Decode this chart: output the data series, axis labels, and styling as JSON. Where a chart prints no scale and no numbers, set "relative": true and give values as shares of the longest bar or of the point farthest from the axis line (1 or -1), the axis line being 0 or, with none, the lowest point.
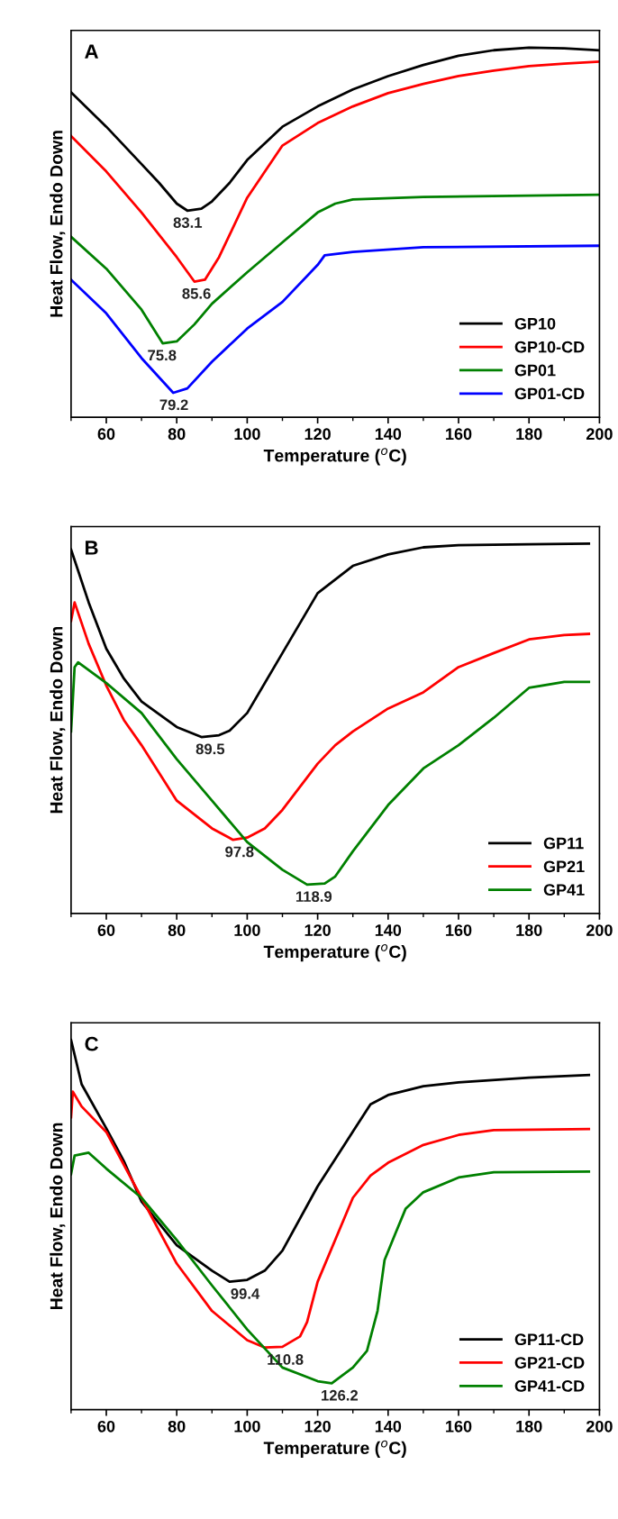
{
  "chart_data": [
    {
      "type": "line",
      "title": "A",
      "xlabel": "Temperature ($^{o}$C)",
      "ylabel": "Heat Flow, Endo Down",
      "relative": true,
      "xlim": [
        50,
        200
      ],
      "xticks": [
        {
          "value": 50,
          "label": null
        },
        60,
        {
          "value": 70,
          "label": null
        },
        80,
        {
          "value": 90,
          "label": null
        },
        100,
        {
          "value": 110,
          "label": null
        },
        120,
        {
          "value": 130,
          "label": null
        },
        140,
        {
          "value": 150,
          "label": null
        },
        160,
        {
          "value": 170,
          "label": null
        },
        180,
        {
          "value": 190,
          "label": null
        },
        200
      ],
      "tick_labels": "x",
      "grid": false,
      "legend": "bottom right",
      "marker": "none",
      "line_style": "solid",
      "series": [
        {
          "name": "GP10",
          "color": "#000000",
          "x": [
            50,
            60,
            70,
            75,
            80,
            83,
            87,
            90,
            95,
            100,
            110,
            120,
            130,
            140,
            150,
            160,
            170,
            180,
            190,
            200
          ],
          "values": [
            0.879,
            0.786,
            0.685,
            0.634,
            0.578,
            0.559,
            0.564,
            0.584,
            0.634,
            0.696,
            0.786,
            0.841,
            0.887,
            0.923,
            0.953,
            0.978,
            0.993,
            1,
            0.998,
            0.993
          ]
        },
        {
          "name": "GP10-CD",
          "color": "#ff0000",
          "x": [
            50,
            60,
            70,
            80,
            85,
            88,
            92,
            100,
            110,
            120,
            130,
            140,
            150,
            160,
            170,
            180,
            190,
            200
          ],
          "values": [
            0.761,
            0.665,
            0.554,
            0.433,
            0.367,
            0.372,
            0.433,
            0.594,
            0.735,
            0.796,
            0.841,
            0.877,
            0.902,
            0.923,
            0.938,
            0.95,
            0.957,
            0.962
          ]
        },
        {
          "name": "GP01",
          "color": "#008000",
          "x": [
            50,
            60,
            70,
            76,
            80,
            85,
            90,
            100,
            110,
            120,
            125,
            130,
            150,
            200
          ],
          "values": [
            0.488,
            0.402,
            0.291,
            0.2,
            0.205,
            0.251,
            0.307,
            0.392,
            0.473,
            0.554,
            0.578,
            0.589,
            0.596,
            0.602
          ]
        },
        {
          "name": "GP01-CD",
          "color": "#0000ff",
          "x": [
            50,
            60,
            70,
            79,
            83,
            90,
            100,
            110,
            120,
            122,
            130,
            150,
            200
          ],
          "values": [
            0.372,
            0.281,
            0.16,
            0.066,
            0.078,
            0.15,
            0.24,
            0.312,
            0.412,
            0.438,
            0.447,
            0.46,
            0.464
          ]
        }
      ],
      "annotations": [
        {
          "text": "83.1",
          "x": 83.1,
          "y": 0.559
        },
        {
          "text": "85.6",
          "x": 85.6,
          "y": 0.367
        },
        {
          "text": "75.8",
          "x": 75.8,
          "y": 0.2
        },
        {
          "text": "79.2",
          "x": 79.2,
          "y": 0.066
        }
      ]
    },
    {
      "type": "line",
      "title": "B",
      "xlabel": "Temperature ($^{o}$C)",
      "ylabel": "Heat Flow, Endo Down",
      "relative": true,
      "xlim": [
        50,
        200
      ],
      "xticks": [
        {
          "value": 50,
          "label": null
        },
        60,
        {
          "value": 70,
          "label": null
        },
        80,
        {
          "value": 90,
          "label": null
        },
        100,
        {
          "value": 110,
          "label": null
        },
        120,
        {
          "value": 130,
          "label": null
        },
        140,
        {
          "value": 150,
          "label": null
        },
        160,
        {
          "value": 170,
          "label": null
        },
        180,
        {
          "value": 190,
          "label": null
        },
        200
      ],
      "tick_labels": "x",
      "grid": false,
      "legend": "bottom right",
      "marker": "none",
      "line_style": "solid",
      "series": [
        {
          "name": "GP11",
          "color": "#000000",
          "x": [
            50,
            55,
            60,
            65,
            70,
            80,
            87,
            92,
            95,
            100,
            110,
            120,
            130,
            140,
            150,
            160,
            180,
            197
          ],
          "values": [
            0.984,
            0.841,
            0.716,
            0.635,
            0.573,
            0.504,
            0.477,
            0.482,
            0.494,
            0.542,
            0.704,
            0.866,
            0.94,
            0.971,
            0.99,
            0.996,
            0.998,
            1
          ]
        },
        {
          "name": "GP21",
          "color": "#ff0000",
          "x": [
            50,
            51,
            55,
            60,
            65,
            70,
            80,
            90,
            96,
            100,
            105,
            110,
            120,
            125,
            130,
            140,
            150,
            160,
            170,
            180,
            190,
            197
          ],
          "values": [
            0.791,
            0.841,
            0.729,
            0.616,
            0.523,
            0.455,
            0.305,
            0.23,
            0.199,
            0.205,
            0.23,
            0.28,
            0.405,
            0.455,
            0.492,
            0.554,
            0.598,
            0.666,
            0.704,
            0.741,
            0.753,
            0.756
          ]
        },
        {
          "name": "GP41",
          "color": "#008000",
          "x": [
            50,
            51,
            52,
            60,
            70,
            80,
            90,
            100,
            110,
            117,
            122,
            125,
            130,
            140,
            150,
            160,
            170,
            180,
            190,
            197
          ],
          "values": [
            0.492,
            0.666,
            0.679,
            0.623,
            0.542,
            0.417,
            0.305,
            0.193,
            0.118,
            0.078,
            0.081,
            0.1,
            0.168,
            0.293,
            0.392,
            0.455,
            0.529,
            0.61,
            0.626,
            0.626
          ]
        }
      ],
      "annotations": [
        {
          "text": "89.5",
          "x": 89.5,
          "y": 0.477
        },
        {
          "text": "97.8",
          "x": 97.8,
          "y": 0.199
        },
        {
          "text": "118.9",
          "x": 118.9,
          "y": 0.078
        }
      ]
    },
    {
      "type": "line",
      "title": "C",
      "xlabel": "Temperature ($^{o}$C)",
      "ylabel": "Heat Flow, Endo Down",
      "relative": true,
      "xlim": [
        50,
        200
      ],
      "xticks": [
        {
          "value": 50,
          "label": null
        },
        60,
        {
          "value": 70,
          "label": null
        },
        80,
        {
          "value": 90,
          "label": null
        },
        100,
        {
          "value": 110,
          "label": null
        },
        120,
        {
          "value": 130,
          "label": null
        },
        140,
        {
          "value": 150,
          "label": null
        },
        160,
        {
          "value": 170,
          "label": null
        },
        180,
        {
          "value": 190,
          "label": null
        },
        200
      ],
      "tick_labels": "x",
      "grid": false,
      "legend": "bottom right",
      "marker": "none",
      "line_style": "solid",
      "series": [
        {
          "name": "GP11-CD",
          "color": "#000000",
          "x": [
            50,
            53,
            60,
            65,
            70,
            80,
            90,
            95,
            100,
            105,
            110,
            120,
            130,
            135,
            140,
            150,
            160,
            180,
            197
          ],
          "values": [
            1,
            0.88,
            0.761,
            0.672,
            0.563,
            0.445,
            0.376,
            0.346,
            0.351,
            0.376,
            0.43,
            0.604,
            0.752,
            0.826,
            0.851,
            0.875,
            0.885,
            0.898,
            0.905
          ]
        },
        {
          "name": "GP21-CD",
          "color": "#ff0000",
          "x": [
            50,
            50.5,
            53,
            60,
            70,
            80,
            90,
            100,
            105,
            110,
            115,
            117,
            120,
            130,
            135,
            140,
            150,
            160,
            170,
            197
          ],
          "values": [
            0.791,
            0.86,
            0.82,
            0.751,
            0.573,
            0.395,
            0.267,
            0.188,
            0.168,
            0.17,
            0.198,
            0.237,
            0.346,
            0.573,
            0.633,
            0.668,
            0.716,
            0.743,
            0.756,
            0.759
          ]
        },
        {
          "name": "GP41-CD",
          "color": "#008000",
          "x": [
            50,
            51,
            55,
            60,
            70,
            80,
            90,
            100,
            110,
            120,
            124,
            130,
            134,
            137,
            139,
            142,
            145,
            150,
            160,
            170,
            197
          ],
          "values": [
            0.637,
            0.687,
            0.695,
            0.652,
            0.573,
            0.459,
            0.336,
            0.217,
            0.114,
            0.077,
            0.071,
            0.114,
            0.159,
            0.267,
            0.405,
            0.475,
            0.544,
            0.588,
            0.628,
            0.642,
            0.644
          ]
        }
      ],
      "annotations": [
        {
          "text": "99.4",
          "x": 99.4,
          "y": 0.346
        },
        {
          "text": "110.8",
          "x": 110.8,
          "y": 0.168
        },
        {
          "text": "126.2",
          "x": 126.2,
          "y": 0.071
        }
      ]
    }
  ]
}
